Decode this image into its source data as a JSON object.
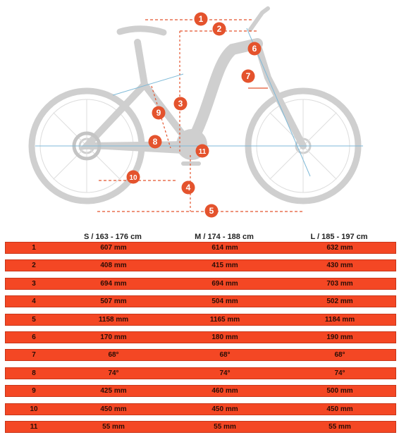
{
  "table": {
    "columns": [
      "S / 163 - 176 cm",
      "M / 174 - 188 cm",
      "L / 185 - 197 cm"
    ],
    "rows": [
      {
        "id": "1",
        "values": [
          "607 mm",
          "614 mm",
          "632 mm"
        ]
      },
      {
        "id": "2",
        "values": [
          "408 mm",
          "415 mm",
          "430 mm"
        ]
      },
      {
        "id": "3",
        "values": [
          "694 mm",
          "694 mm",
          "703 mm"
        ]
      },
      {
        "id": "4",
        "values": [
          "507 mm",
          "504 mm",
          "502 mm"
        ]
      },
      {
        "id": "5",
        "values": [
          "1158 mm",
          "1165 mm",
          "1184 mm"
        ]
      },
      {
        "id": "6",
        "values": [
          "170 mm",
          "180 mm",
          "190 mm"
        ]
      },
      {
        "id": "7",
        "values": [
          "68°",
          "68°",
          "68°"
        ]
      },
      {
        "id": "8",
        "values": [
          "74°",
          "74°",
          "74°"
        ]
      },
      {
        "id": "9",
        "values": [
          "425 mm",
          "460 mm",
          "500 mm"
        ]
      },
      {
        "id": "10",
        "values": [
          "450 mm",
          "450 mm",
          "450 mm"
        ]
      },
      {
        "id": "11",
        "values": [
          "55 mm",
          "55 mm",
          "55 mm"
        ]
      }
    ]
  },
  "diagram": {
    "markers": [
      "1",
      "2",
      "3",
      "4",
      "5",
      "6",
      "7",
      "8",
      "9",
      "10",
      "11"
    ]
  },
  "colors": {
    "row_fill": "#f44724",
    "marker_fill": "#e4532d",
    "bike_gray": "#cfcfcf"
  }
}
